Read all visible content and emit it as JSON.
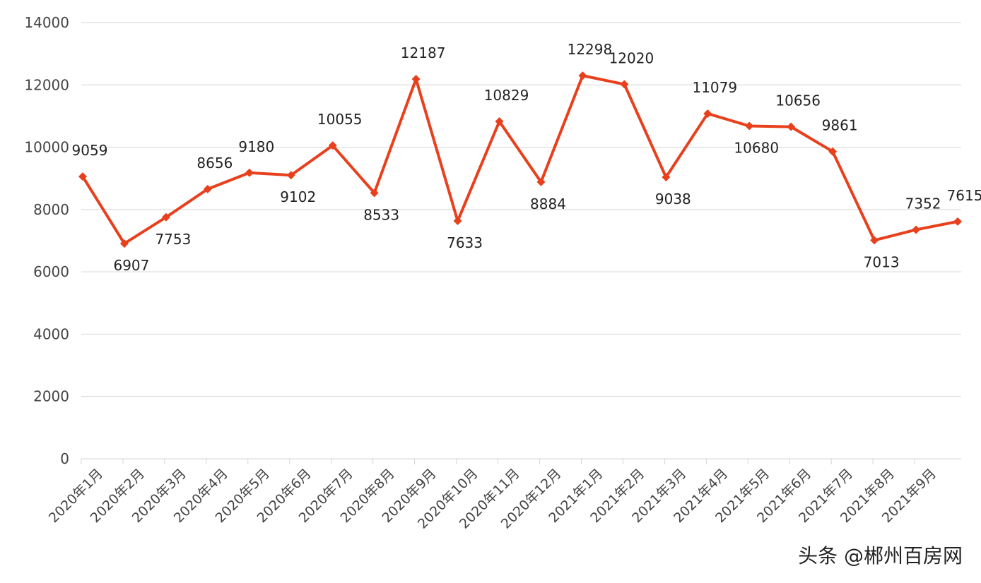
{
  "chart_data": {
    "type": "line",
    "categories": [
      "2020年1月",
      "2020年2月",
      "2020年3月",
      "2020年4月",
      "2020年5月",
      "2020年6月",
      "2020年7月",
      "2020年8月",
      "2020年9月",
      "2020年10月",
      "2020年11月",
      "2020年12月",
      "2021年1月",
      "2021年2月",
      "2021年3月",
      "2021年4月",
      "2021年5月",
      "2021年6月",
      "2021年7月",
      "2021年8月",
      "2021年9月",
      null
    ],
    "series": [
      {
        "name": null,
        "color": "#e8401c",
        "values": [
          9059,
          6907,
          7753,
          8656,
          9180,
          9102,
          10055,
          8533,
          12187,
          7633,
          10829,
          8884,
          12298,
          12020,
          9038,
          11079,
          10680,
          10656,
          9861,
          7013,
          7352,
          7615
        ]
      }
    ],
    "ylim": [
      0,
      14000
    ],
    "yticks": [
      0,
      2000,
      4000,
      6000,
      8000,
      10000,
      12000,
      14000
    ],
    "grid": true,
    "annotations": [
      "头条 @郴州百房网"
    ]
  }
}
